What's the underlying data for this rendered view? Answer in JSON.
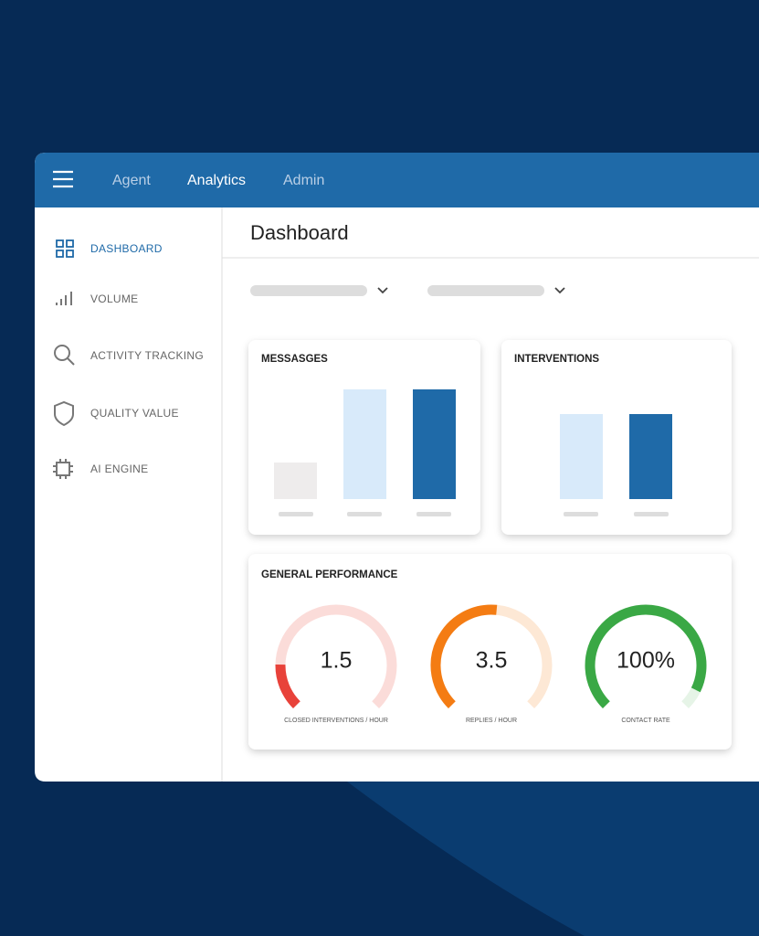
{
  "nav": {
    "tabs": [
      "Agent",
      "Analytics",
      "Admin"
    ]
  },
  "sidebar": {
    "items": [
      "DASHBOARD",
      "VOLUME",
      "ACTIVITY TRACKING",
      "QUALITY VALUE",
      "AI ENGINE"
    ]
  },
  "main": {
    "title": "Dashboard",
    "cards": [
      {
        "title": "MESSASGES"
      },
      {
        "title": "INTERVENTIONS"
      }
    ],
    "performance": {
      "title": "GENERAL PERFORMANCE",
      "gauges": [
        {
          "value": "1.5",
          "label": "CLOSED INTERVENTIONS / HOUR"
        },
        {
          "value": "3.5",
          "label": "REPLIES / HOUR"
        },
        {
          "value": "100%",
          "label": "CONTACT RATE"
        }
      ]
    }
  }
}
